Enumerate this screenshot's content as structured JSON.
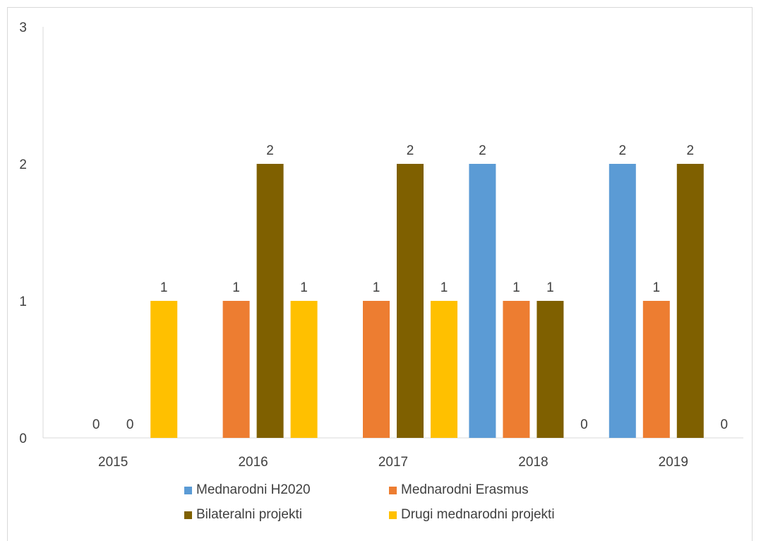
{
  "chart_data": {
    "type": "bar",
    "title": "",
    "xlabel": "",
    "ylabel": "",
    "categories": [
      "2015",
      "2016",
      "2017",
      "2018",
      "2019"
    ],
    "ylim": [
      0,
      3
    ],
    "yticks": [
      "0",
      "1",
      "2",
      "3"
    ],
    "grid": false,
    "legend_position": "bottom",
    "series": [
      {
        "name": "Mednarodni H2020",
        "color": "#5b9bd5",
        "values": [
          0,
          0,
          0,
          2,
          2
        ],
        "labels": [
          "",
          "",
          "",
          "2",
          "2"
        ]
      },
      {
        "name": "Mednarodni Erasmus",
        "color": "#ed7d31",
        "values": [
          0,
          1,
          1,
          1,
          1
        ],
        "labels": [
          "0",
          "1",
          "1",
          "1",
          "1"
        ]
      },
      {
        "name": "Bilateralni projekti",
        "color": "#7f6000",
        "values": [
          0,
          2,
          2,
          1,
          2
        ],
        "labels": [
          "0",
          "2",
          "2",
          "1",
          "2"
        ]
      },
      {
        "name": "Drugi mednarodni projekti",
        "color": "#ffc000",
        "values": [
          1,
          1,
          1,
          0,
          0
        ],
        "labels": [
          "1",
          "1",
          "1",
          "0",
          "0"
        ]
      }
    ]
  }
}
